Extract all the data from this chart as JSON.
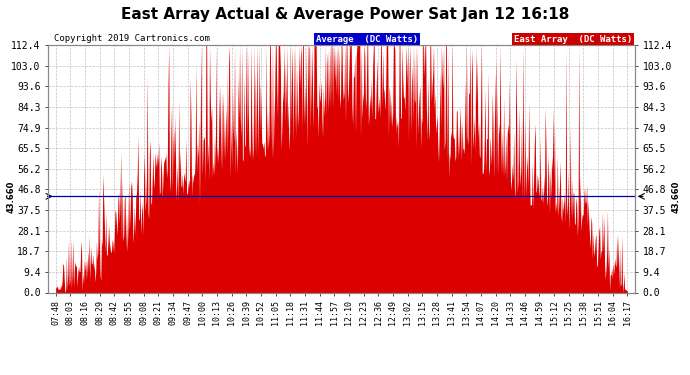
{
  "title": "East Array Actual & Average Power Sat Jan 12 16:18",
  "copyright": "Copyright 2019 Cartronics.com",
  "legend_labels": [
    "Average  (DC Watts)",
    "East Array  (DC Watts)"
  ],
  "legend_colors": [
    "#0000cc",
    "#cc0000"
  ],
  "avg_value": 43.66,
  "ylim": [
    0,
    112.4
  ],
  "yticks": [
    0.0,
    9.4,
    18.7,
    28.1,
    37.5,
    46.8,
    56.2,
    65.5,
    74.9,
    84.3,
    93.6,
    103.0,
    112.4
  ],
  "background_color": "#ffffff",
  "grid_color": "#bbbbbb",
  "fill_color": "#dd0000",
  "avg_line_color": "#0000aa",
  "avg_annotation": "43.660",
  "xtick_labels": [
    "07:48",
    "08:03",
    "08:16",
    "08:29",
    "08:42",
    "08:55",
    "09:08",
    "09:21",
    "09:34",
    "09:47",
    "10:00",
    "10:13",
    "10:26",
    "10:39",
    "10:52",
    "11:05",
    "11:18",
    "11:31",
    "11:44",
    "11:57",
    "12:10",
    "12:23",
    "12:36",
    "12:49",
    "13:02",
    "13:15",
    "13:28",
    "13:41",
    "13:54",
    "14:07",
    "14:20",
    "14:33",
    "14:46",
    "14:59",
    "15:12",
    "15:25",
    "15:38",
    "15:51",
    "16:04",
    "16:17"
  ],
  "title_fontsize": 11,
  "copyright_fontsize": 6.5,
  "tick_fontsize": 6,
  "ytick_fontsize": 7,
  "figsize": [
    6.9,
    3.75
  ],
  "dpi": 100
}
